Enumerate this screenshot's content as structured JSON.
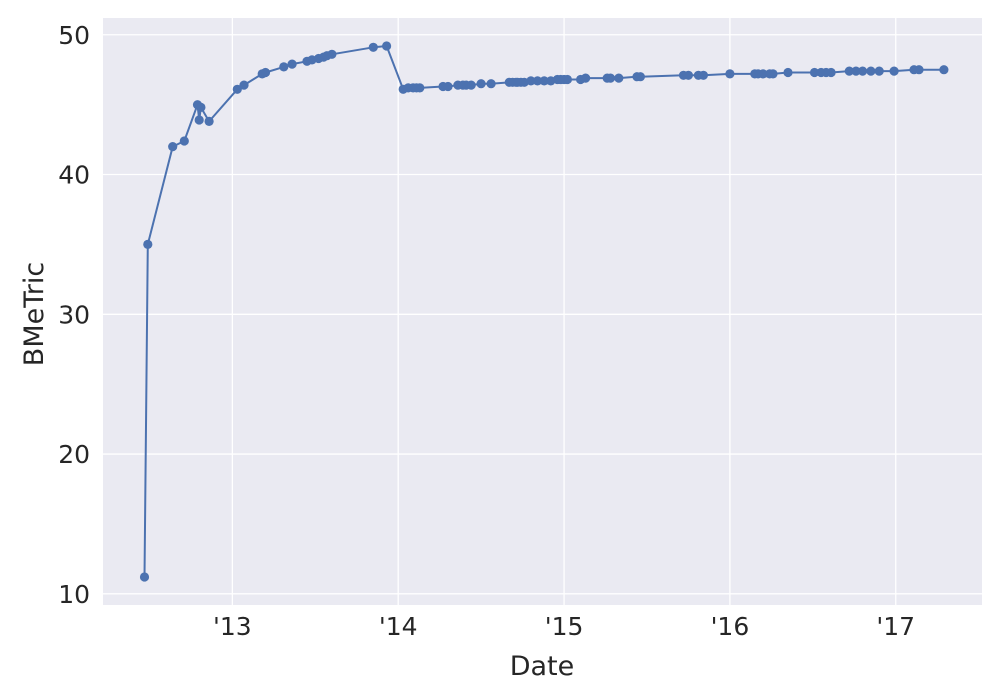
{
  "colors": {
    "figure_background": "#ffffff",
    "plot_background": "#eaeaf2",
    "grid": "#ffffff",
    "series": "#4c72b0",
    "text": "#262626"
  },
  "chart_data": {
    "type": "line",
    "xlabel": "Date",
    "ylabel": "BMeTric",
    "grid": true,
    "legend": "none",
    "markers": true,
    "xlim": [
      2012.22,
      2017.52
    ],
    "ylim": [
      9.2,
      51.2
    ],
    "x_ticks": [
      {
        "value": 2013,
        "label": "'13"
      },
      {
        "value": 2014,
        "label": "'14"
      },
      {
        "value": 2015,
        "label": "'15"
      },
      {
        "value": 2016,
        "label": "'16"
      },
      {
        "value": 2017,
        "label": "'17"
      }
    ],
    "y_ticks": [
      10,
      20,
      30,
      40,
      50
    ],
    "series": [
      {
        "x": [
          2012.47,
          2012.49,
          2012.64,
          2012.71,
          2012.79,
          2012.8,
          2012.81,
          2012.86,
          2013.03,
          2013.07,
          2013.18,
          2013.2,
          2013.31,
          2013.36,
          2013.45,
          2013.48,
          2013.52,
          2013.55,
          2013.57,
          2013.6,
          2013.85,
          2013.93,
          2014.03,
          2014.06,
          2014.09,
          2014.11,
          2014.13,
          2014.27,
          2014.3,
          2014.36,
          2014.39,
          2014.41,
          2014.44,
          2014.5,
          2014.56,
          2014.67,
          2014.69,
          2014.71,
          2014.72,
          2014.74,
          2014.76,
          2014.8,
          2014.84,
          2014.88,
          2014.92,
          2014.96,
          2014.98,
          2015.0,
          2015.02,
          2015.1,
          2015.13,
          2015.26,
          2015.28,
          2015.33,
          2015.44,
          2015.46,
          2015.72,
          2015.75,
          2015.81,
          2015.84,
          2016.0,
          2016.15,
          2016.17,
          2016.2,
          2016.24,
          2016.26,
          2016.35,
          2016.51,
          2016.55,
          2016.58,
          2016.61,
          2016.72,
          2016.76,
          2016.8,
          2016.85,
          2016.9,
          2016.99,
          2017.11,
          2017.14,
          2017.29
        ],
        "y": [
          11.2,
          35.0,
          42.0,
          42.4,
          45.0,
          43.9,
          44.8,
          43.8,
          46.1,
          46.4,
          47.2,
          47.3,
          47.7,
          47.9,
          48.1,
          48.2,
          48.3,
          48.4,
          48.5,
          48.6,
          49.1,
          49.2,
          46.1,
          46.2,
          46.2,
          46.2,
          46.2,
          46.3,
          46.3,
          46.4,
          46.4,
          46.4,
          46.4,
          46.5,
          46.5,
          46.6,
          46.6,
          46.6,
          46.6,
          46.6,
          46.6,
          46.7,
          46.7,
          46.7,
          46.7,
          46.8,
          46.8,
          46.8,
          46.8,
          46.8,
          46.9,
          46.9,
          46.9,
          46.9,
          47.0,
          47.0,
          47.1,
          47.1,
          47.1,
          47.1,
          47.2,
          47.2,
          47.2,
          47.2,
          47.2,
          47.2,
          47.3,
          47.3,
          47.3,
          47.3,
          47.3,
          47.4,
          47.4,
          47.4,
          47.4,
          47.4,
          47.4,
          47.5,
          47.5,
          47.5
        ]
      }
    ]
  }
}
